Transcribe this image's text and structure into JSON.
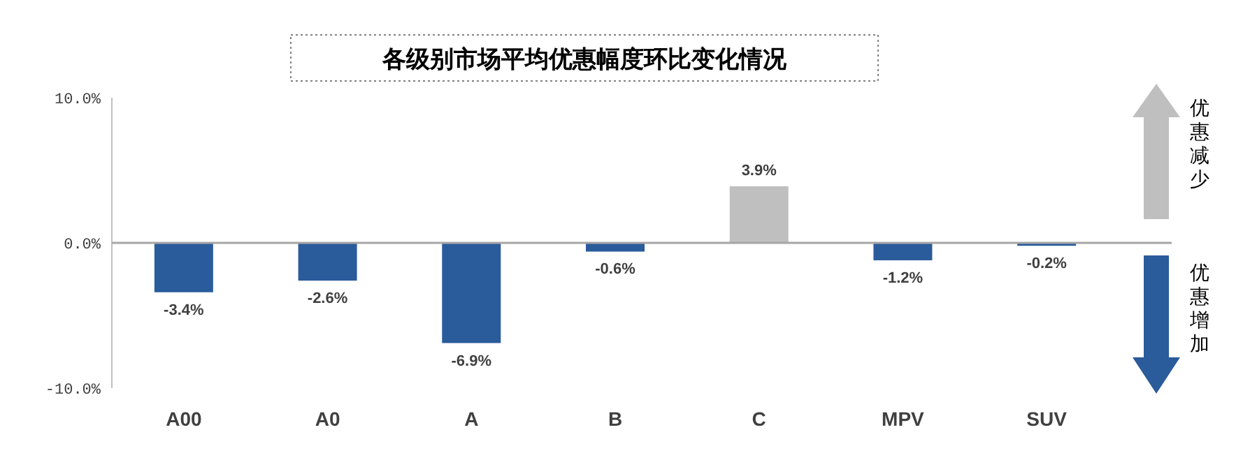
{
  "chart_data": {
    "type": "bar",
    "title": "各级别市场平均优惠幅度环比变化情况",
    "categories": [
      "A00",
      "A0",
      "A",
      "B",
      "C",
      "MPV",
      "SUV"
    ],
    "values": [
      -3.4,
      -2.6,
      -6.9,
      -0.6,
      3.9,
      -1.2,
      -0.2
    ],
    "colors": [
      "#2a5b9b",
      "#2a5b9b",
      "#2a5b9b",
      "#2a5b9b",
      "#bfbfbf",
      "#2a5b9b",
      "#2a5b9b"
    ],
    "value_labels": [
      "-3.4%",
      "-2.6%",
      "-6.9%",
      "-0.6%",
      "3.9%",
      "-1.2%",
      "-0.2%"
    ],
    "ylim": [
      -10,
      10
    ],
    "yticks": [
      {
        "value": 10,
        "label": "10.0%"
      },
      {
        "value": 0,
        "label": "0.0%"
      },
      {
        "value": -10,
        "label": "-10.0%"
      }
    ],
    "annotations": [
      "优惠减少",
      "优惠增加"
    ]
  }
}
